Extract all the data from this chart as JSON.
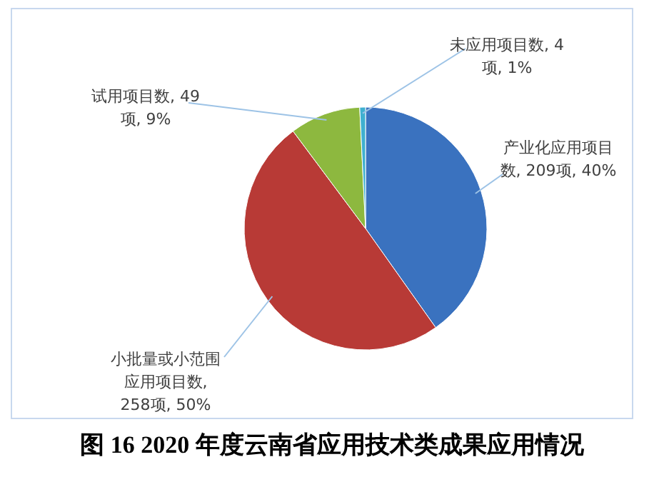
{
  "chart_data": {
    "type": "pie",
    "title": "图 16 2020 年度云南省应用技术类成果应用情况",
    "categories": [
      "产业化应用项目数",
      "小批量或小范围应用项目数",
      "试用项目数",
      "未应用项目数"
    ],
    "values": [
      209,
      258,
      49,
      4
    ],
    "value_labels": [
      ", 209项, 40%",
      ", 258项, 50%",
      ", 49项, 9%",
      ", 4项, 1%"
    ],
    "colors": [
      "#3a72bf",
      "#b83a36",
      "#8db83f",
      "#3fb0d0"
    ],
    "legend": false
  }
}
